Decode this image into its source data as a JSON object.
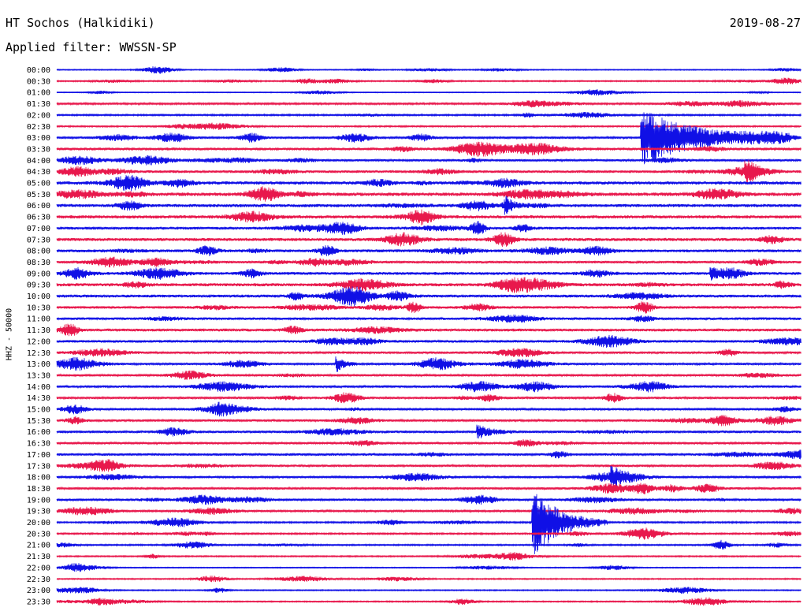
{
  "header": {
    "station": "HT Sochos (Halkidiki)",
    "date": "2019-08-27",
    "filter": "Applied filter: WWSSN-SP"
  },
  "chart_data": {
    "type": "line",
    "kind": "helicorder",
    "ylabel": "HHZ - 50000",
    "row_labels": [
      "00:00",
      "00:30",
      "01:00",
      "01:30",
      "02:00",
      "02:30",
      "03:00",
      "03:30",
      "04:00",
      "04:30",
      "05:00",
      "05:30",
      "06:00",
      "06:30",
      "07:00",
      "07:30",
      "08:00",
      "08:30",
      "09:00",
      "09:30",
      "10:00",
      "10:30",
      "11:00",
      "11:30",
      "12:00",
      "12:30",
      "13:00",
      "13:30",
      "14:00",
      "14:30",
      "15:00",
      "15:30",
      "16:00",
      "16:30",
      "17:00",
      "17:30",
      "18:00",
      "18:30",
      "19:00",
      "19:30",
      "20:00",
      "20:30",
      "21:00",
      "21:30",
      "22:00",
      "22:30",
      "23:00",
      "23:30"
    ],
    "row_minutes": 30,
    "colors": [
      "#1010e6",
      "#e8184c"
    ],
    "noise_levels": [
      0.6,
      0.8,
      0.5,
      1.2,
      1.0,
      0.9,
      1.4,
      1.8,
      1.5,
      1.7,
      2.0,
      2.2,
      2.0,
      2.0,
      1.8,
      2.0,
      1.8,
      1.6,
      1.8,
      2.0,
      1.8,
      1.6,
      1.6,
      1.8,
      1.6,
      1.5,
      1.4,
      1.4,
      1.5,
      1.5,
      1.4,
      1.5,
      1.6,
      1.5,
      1.6,
      1.5,
      1.4,
      1.5,
      1.4,
      1.3,
      1.0,
      1.0,
      0.9,
      0.8,
      0.6,
      0.8,
      0.7,
      0.8
    ],
    "events": [
      {
        "row": 6,
        "minute": 23.6,
        "amplitude": 36,
        "duration_min": 6,
        "label": "large local event"
      },
      {
        "row": 40,
        "minute": 19.2,
        "amplitude": 44,
        "duration_min": 3,
        "label": "spike"
      },
      {
        "row": 9,
        "minute": 27.8,
        "amplitude": 12,
        "duration_min": 1.5,
        "label": "burst"
      },
      {
        "row": 26,
        "minute": 11.3,
        "amplitude": 9,
        "duration_min": 0.8,
        "label": "burst"
      },
      {
        "row": 32,
        "minute": 17.0,
        "amplitude": 8,
        "duration_min": 1.5,
        "label": "burst"
      },
      {
        "row": 36,
        "minute": 22.4,
        "amplitude": 9,
        "duration_min": 1.2,
        "label": "burst"
      },
      {
        "row": 12,
        "minute": 18.1,
        "amplitude": 8,
        "duration_min": 1.0,
        "label": "burst"
      },
      {
        "row": 18,
        "minute": 26.4,
        "amplitude": 8,
        "duration_min": 1.0,
        "label": "burst"
      }
    ]
  }
}
